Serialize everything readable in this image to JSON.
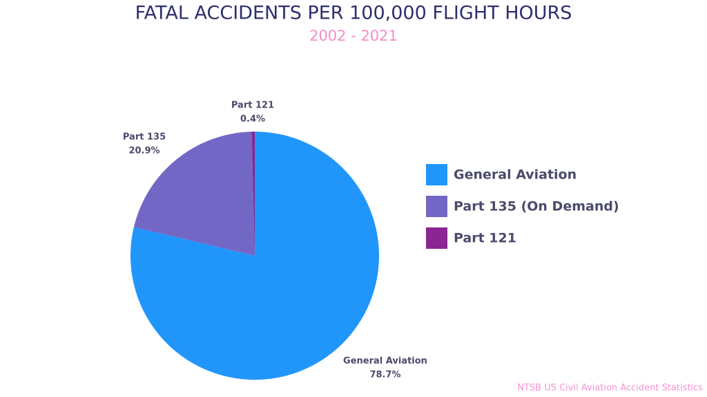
{
  "chart_data": {
    "type": "pie",
    "title": "FATAL ACCIDENTS PER 100,000 FLIGHT HOURS",
    "subtitle": "2002 - 2021",
    "source": "NTSB US Civil Aviation Accident Statistics",
    "categories": [
      "General Aviation",
      "Part 135 (On Demand)",
      "Part 121"
    ],
    "slice_labels": [
      "General Aviation",
      "Part 135",
      "Part 121"
    ],
    "values": [
      78.7,
      20.9,
      0.4
    ],
    "value_labels": [
      "78.7%",
      "20.9%",
      "0.4%"
    ],
    "colors": [
      "#2196fa",
      "#7367c6",
      "#8b2591"
    ],
    "legend": "right"
  }
}
